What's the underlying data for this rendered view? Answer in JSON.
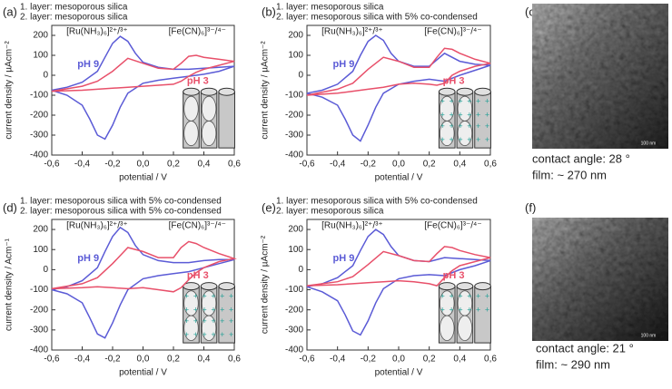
{
  "chart_data": [
    {
      "type": "line",
      "label": "(a)",
      "layers": [
        "1. layer: mesoporous silica",
        "2. layer: mesoporous silica"
      ],
      "ylabel": "current density / µAcm⁻²",
      "xlabel": "potential / V",
      "ru_label": "[Ru(NH₃)₆]²⁺/³⁺",
      "fe_label": "[Fe(CN)₆]³⁻/⁴⁻",
      "xlim": [
        -0.6,
        0.6
      ],
      "ylim": [
        -400,
        250
      ],
      "xticks": [
        {
          "value": -0.6,
          "label": "-0,6"
        },
        {
          "value": -0.4,
          "label": "-0,4"
        },
        {
          "value": -0.2,
          "label": "-0,2"
        },
        {
          "value": 0,
          "label": "0,0"
        },
        {
          "value": 0.2,
          "label": "0,2"
        },
        {
          "value": 0.4,
          "label": "0,4"
        },
        {
          "value": 0.6,
          "label": "0,6"
        }
      ],
      "yticks": [
        -400,
        -300,
        -200,
        -100,
        0,
        100,
        200
      ],
      "series": [
        {
          "name": "pH 9",
          "color": "#5b5bd6",
          "x": [
            -0.6,
            -0.5,
            -0.4,
            -0.3,
            -0.25,
            -0.2,
            -0.15,
            -0.1,
            -0.05,
            0,
            0.1,
            0.2,
            0.3,
            0.4,
            0.5,
            0.6,
            0.5,
            0.4,
            0.3,
            0.2,
            0.1,
            0,
            -0.1,
            -0.15,
            -0.2,
            -0.25,
            -0.3,
            -0.35,
            -0.4,
            -0.5,
            -0.6
          ],
          "values": [
            -75,
            -60,
            -35,
            20,
            90,
            160,
            195,
            170,
            110,
            65,
            40,
            30,
            30,
            35,
            40,
            45,
            20,
            5,
            -5,
            -15,
            -25,
            -40,
            -90,
            -160,
            -250,
            -320,
            -300,
            -220,
            -150,
            -100,
            -75
          ]
        },
        {
          "name": "pH 3",
          "color": "#e8506a",
          "x": [
            -0.6,
            -0.4,
            -0.3,
            -0.2,
            -0.1,
            0,
            0.1,
            0.2,
            0.25,
            0.3,
            0.35,
            0.4,
            0.5,
            0.6,
            0.5,
            0.4,
            0.35,
            0.3,
            0.25,
            0.2,
            0.1,
            0,
            -0.1,
            -0.2,
            -0.3,
            -0.4,
            -0.6
          ],
          "values": [
            -80,
            -55,
            -30,
            20,
            85,
            60,
            35,
            30,
            60,
            95,
            100,
            90,
            80,
            70,
            50,
            30,
            15,
            -5,
            -30,
            -45,
            -50,
            -55,
            -60,
            -65,
            -70,
            -75,
            -80
          ]
        }
      ]
    },
    {
      "type": "line",
      "label": "(b)",
      "layers": [
        "1. layer: mesoporous silica",
        "2. layer: mesoporous silica with 5% co-condensed"
      ],
      "ylabel": "current density / µAcm⁻²",
      "xlabel": "potential / V",
      "ru_label": "[Ru(NH₃)₆]²⁺/³⁺",
      "fe_label": "[Fe(CN)₆]³⁻/⁴⁻",
      "xlim": [
        -0.6,
        0.6
      ],
      "ylim": [
        -400,
        250
      ],
      "xticks": [
        {
          "value": -0.6,
          "label": "-0,6"
        },
        {
          "value": -0.4,
          "label": "-0,4"
        },
        {
          "value": -0.2,
          "label": "-0,2"
        },
        {
          "value": 0,
          "label": "0,0"
        },
        {
          "value": 0.2,
          "label": "0,2"
        },
        {
          "value": 0.4,
          "label": "0,4"
        },
        {
          "value": 0.6,
          "label": "0,6"
        }
      ],
      "yticks": [
        -400,
        -300,
        -200,
        -100,
        0,
        100,
        200
      ],
      "series": [
        {
          "name": "pH 9",
          "color": "#5b5bd6",
          "x": [
            -0.6,
            -0.5,
            -0.4,
            -0.3,
            -0.25,
            -0.2,
            -0.15,
            -0.1,
            -0.05,
            0,
            0.1,
            0.2,
            0.3,
            0.4,
            0.5,
            0.6,
            0.5,
            0.4,
            0.3,
            0.2,
            0.1,
            0,
            -0.1,
            -0.15,
            -0.2,
            -0.25,
            -0.3,
            -0.35,
            -0.4,
            -0.5,
            -0.6
          ],
          "values": [
            -90,
            -75,
            -45,
            20,
            100,
            170,
            200,
            175,
            110,
            70,
            45,
            45,
            110,
            70,
            55,
            50,
            25,
            0,
            -30,
            -20,
            -30,
            -45,
            -90,
            -160,
            -250,
            -330,
            -300,
            -220,
            -150,
            -110,
            -90
          ]
        },
        {
          "name": "pH 3",
          "color": "#e8506a",
          "x": [
            -0.6,
            -0.4,
            -0.3,
            -0.2,
            -0.1,
            0,
            0.1,
            0.2,
            0.25,
            0.3,
            0.35,
            0.4,
            0.5,
            0.6,
            0.5,
            0.4,
            0.35,
            0.3,
            0.25,
            0.2,
            0.1,
            0,
            -0.1,
            -0.2,
            -0.3,
            -0.4,
            -0.6
          ],
          "values": [
            -100,
            -70,
            -40,
            30,
            90,
            70,
            40,
            40,
            90,
            135,
            130,
            110,
            80,
            60,
            45,
            20,
            0,
            -40,
            -50,
            -45,
            -40,
            -45,
            -60,
            -70,
            -80,
            -90,
            -100
          ]
        }
      ]
    },
    {
      "type": "line",
      "label": "(d)",
      "layers": [
        "1. layer: mesoporous silica with 5% co-condensed",
        "2. layer: mesoporous silica with 5% co-condensed"
      ],
      "ylabel": "current density / Acm⁻¹",
      "xlabel": "potential / V",
      "ru_label": "[Ru(NH₃)₆]²⁺/³⁺",
      "fe_label": "[Fe(CN)₆]³⁻/⁴⁻",
      "xlim": [
        -0.6,
        0.6
      ],
      "ylim": [
        -400,
        250
      ],
      "xticks": [
        {
          "value": -0.6,
          "label": "-0,6"
        },
        {
          "value": -0.4,
          "label": "-0,4"
        },
        {
          "value": -0.2,
          "label": "-0,2"
        },
        {
          "value": 0,
          "label": "0,0"
        },
        {
          "value": 0.2,
          "label": "0,2"
        },
        {
          "value": 0.4,
          "label": "0,4"
        },
        {
          "value": 0.6,
          "label": "0,6"
        }
      ],
      "yticks": [
        -400,
        -300,
        -200,
        -100,
        0,
        100,
        200
      ],
      "series": [
        {
          "name": "pH 9",
          "color": "#5b5bd6",
          "x": [
            -0.6,
            -0.5,
            -0.4,
            -0.3,
            -0.25,
            -0.2,
            -0.15,
            -0.1,
            -0.05,
            0,
            0.1,
            0.2,
            0.3,
            0.4,
            0.5,
            0.6,
            0.5,
            0.4,
            0.3,
            0.2,
            0.1,
            0,
            -0.1,
            -0.15,
            -0.2,
            -0.25,
            -0.3,
            -0.35,
            -0.4,
            -0.5,
            -0.6
          ],
          "values": [
            -100,
            -85,
            -55,
            10,
            90,
            165,
            210,
            185,
            120,
            75,
            45,
            35,
            35,
            45,
            50,
            50,
            30,
            10,
            -10,
            -20,
            -30,
            -45,
            -100,
            -175,
            -265,
            -340,
            -320,
            -240,
            -165,
            -120,
            -100
          ]
        },
        {
          "name": "pH 3",
          "color": "#e8506a",
          "x": [
            -0.6,
            -0.4,
            -0.3,
            -0.2,
            -0.1,
            0,
            0.1,
            0.2,
            0.25,
            0.3,
            0.35,
            0.4,
            0.5,
            0.6,
            0.5,
            0.4,
            0.35,
            0.3,
            0.25,
            0.2,
            0.1,
            0,
            -0.1,
            -0.2,
            -0.3,
            -0.4,
            -0.6
          ],
          "values": [
            -95,
            -70,
            -40,
            30,
            110,
            90,
            60,
            60,
            110,
            140,
            130,
            110,
            80,
            55,
            40,
            10,
            -15,
            -50,
            -90,
            -110,
            -100,
            -90,
            -95,
            -90,
            -85,
            -90,
            -95
          ]
        }
      ]
    },
    {
      "type": "line",
      "label": "(e)",
      "layers": [
        "1. layer: mesoporous silica with 5% co-condensed",
        "2. layer: mesoporous silica"
      ],
      "ylabel": "current density / µAcm⁻²",
      "xlabel": "potential / V",
      "ru_label": "[Ru(NH₃)₆]²⁺/³⁺",
      "fe_label": "[Fe(CN)₆]³⁻/⁴⁻",
      "xlim": [
        -0.6,
        0.6
      ],
      "ylim": [
        -400,
        250
      ],
      "xticks": [
        {
          "value": -0.6,
          "label": "-0,6"
        },
        {
          "value": -0.4,
          "label": "-0,4"
        },
        {
          "value": -0.2,
          "label": "-0,2"
        },
        {
          "value": 0,
          "label": "0,0"
        },
        {
          "value": 0.2,
          "label": "0,2"
        },
        {
          "value": 0.4,
          "label": "0,4"
        },
        {
          "value": 0.6,
          "label": "0,6"
        }
      ],
      "yticks": [
        -400,
        -300,
        -200,
        -100,
        0,
        100,
        200
      ],
      "series": [
        {
          "name": "pH 9",
          "color": "#5b5bd6",
          "x": [
            -0.6,
            -0.5,
            -0.4,
            -0.3,
            -0.25,
            -0.2,
            -0.15,
            -0.1,
            -0.05,
            0,
            0.1,
            0.2,
            0.3,
            0.4,
            0.5,
            0.6,
            0.5,
            0.4,
            0.3,
            0.2,
            0.1,
            0,
            -0.1,
            -0.15,
            -0.2,
            -0.25,
            -0.3,
            -0.35,
            -0.4,
            -0.5,
            -0.6
          ],
          "values": [
            -85,
            -70,
            -40,
            20,
            95,
            165,
            200,
            175,
            115,
            70,
            45,
            40,
            60,
            55,
            50,
            45,
            20,
            0,
            -30,
            -25,
            -30,
            -45,
            -95,
            -165,
            -255,
            -325,
            -305,
            -225,
            -155,
            -110,
            -85
          ]
        },
        {
          "name": "pH 3",
          "color": "#e8506a",
          "x": [
            -0.6,
            -0.4,
            -0.3,
            -0.2,
            -0.1,
            0,
            0.1,
            0.2,
            0.25,
            0.3,
            0.35,
            0.4,
            0.5,
            0.6,
            0.5,
            0.4,
            0.35,
            0.3,
            0.25,
            0.2,
            0.1,
            0,
            -0.1,
            -0.2,
            -0.3,
            -0.4,
            -0.6
          ],
          "values": [
            -80,
            -60,
            -35,
            25,
            90,
            70,
            45,
            40,
            80,
            115,
            110,
            95,
            75,
            60,
            40,
            20,
            -5,
            -40,
            -80,
            -70,
            -60,
            -55,
            -60,
            -65,
            -70,
            -75,
            -80
          ]
        }
      ]
    }
  ],
  "images": [
    {
      "label": "(c)",
      "caption": [
        "contact angle: 28 °",
        "film: ~ 270 nm"
      ],
      "scale_bar": "100 nm"
    },
    {
      "label": "(f)",
      "caption": [
        "contact angle: 21 °",
        "film: ~ 290 nm"
      ],
      "scale_bar": "100 nm"
    }
  ]
}
